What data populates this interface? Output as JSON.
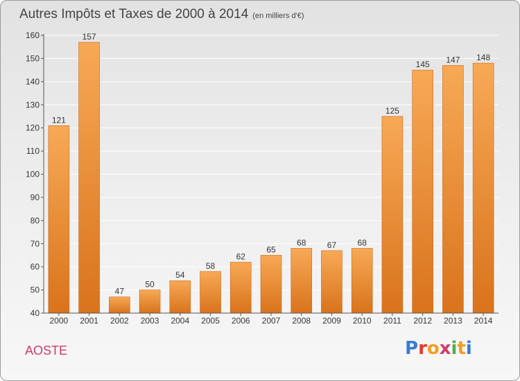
{
  "title": "Autres Impôts et Taxes de 2000 à 2014",
  "subtitle": "(en milliers d'€)",
  "city": "AOSTE",
  "logo": {
    "text": "Proxiti",
    "letter_colors": [
      "#3a7bd5",
      "#e8372c",
      "#f0a020",
      "#d23a6a",
      "#4caf50",
      "#f0a020",
      "#3a7bd5"
    ]
  },
  "colors": {
    "bar_light": "#f7a956",
    "bar_dark": "#d9731c",
    "grid": "#ffffff",
    "axis": "#555555",
    "text": "#333333"
  },
  "chart_data": {
    "type": "bar",
    "categories": [
      "2000",
      "2001",
      "2002",
      "2003",
      "2004",
      "2005",
      "2006",
      "2007",
      "2008",
      "2009",
      "2010",
      "2011",
      "2012",
      "2013",
      "2014"
    ],
    "values": [
      121,
      157,
      47,
      50,
      54,
      58,
      62,
      65,
      68,
      67,
      68,
      125,
      145,
      147,
      148
    ],
    "ylim": [
      40,
      160
    ],
    "yticks": [
      40,
      50,
      60,
      70,
      80,
      90,
      100,
      110,
      120,
      130,
      140,
      150,
      160
    ],
    "grid": true,
    "title": "Autres Impôts et Taxes de 2000 à 2014",
    "xlabel": "",
    "ylabel": ""
  }
}
